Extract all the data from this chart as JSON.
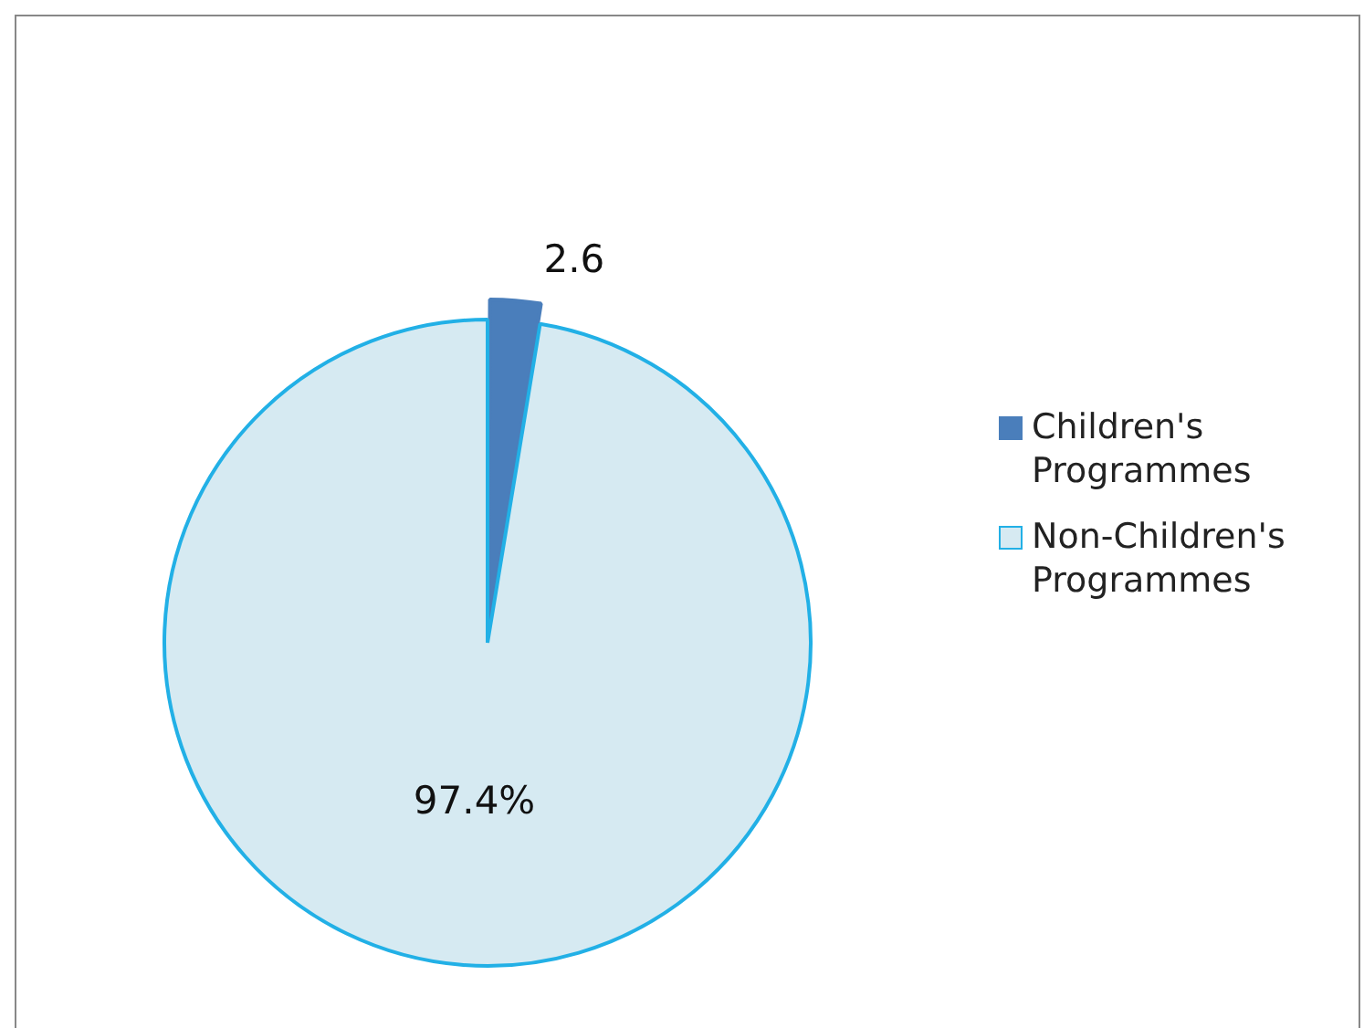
{
  "chart_data": {
    "type": "pie",
    "categories": [
      "Children's Programmes",
      "Non-Children's Programmes"
    ],
    "values": [
      2.6,
      97.4
    ],
    "colors": [
      "#4a7ebb",
      "#d6eaf2"
    ],
    "value_labels": [
      "2.6",
      "97.4%"
    ],
    "legend": "right"
  }
}
